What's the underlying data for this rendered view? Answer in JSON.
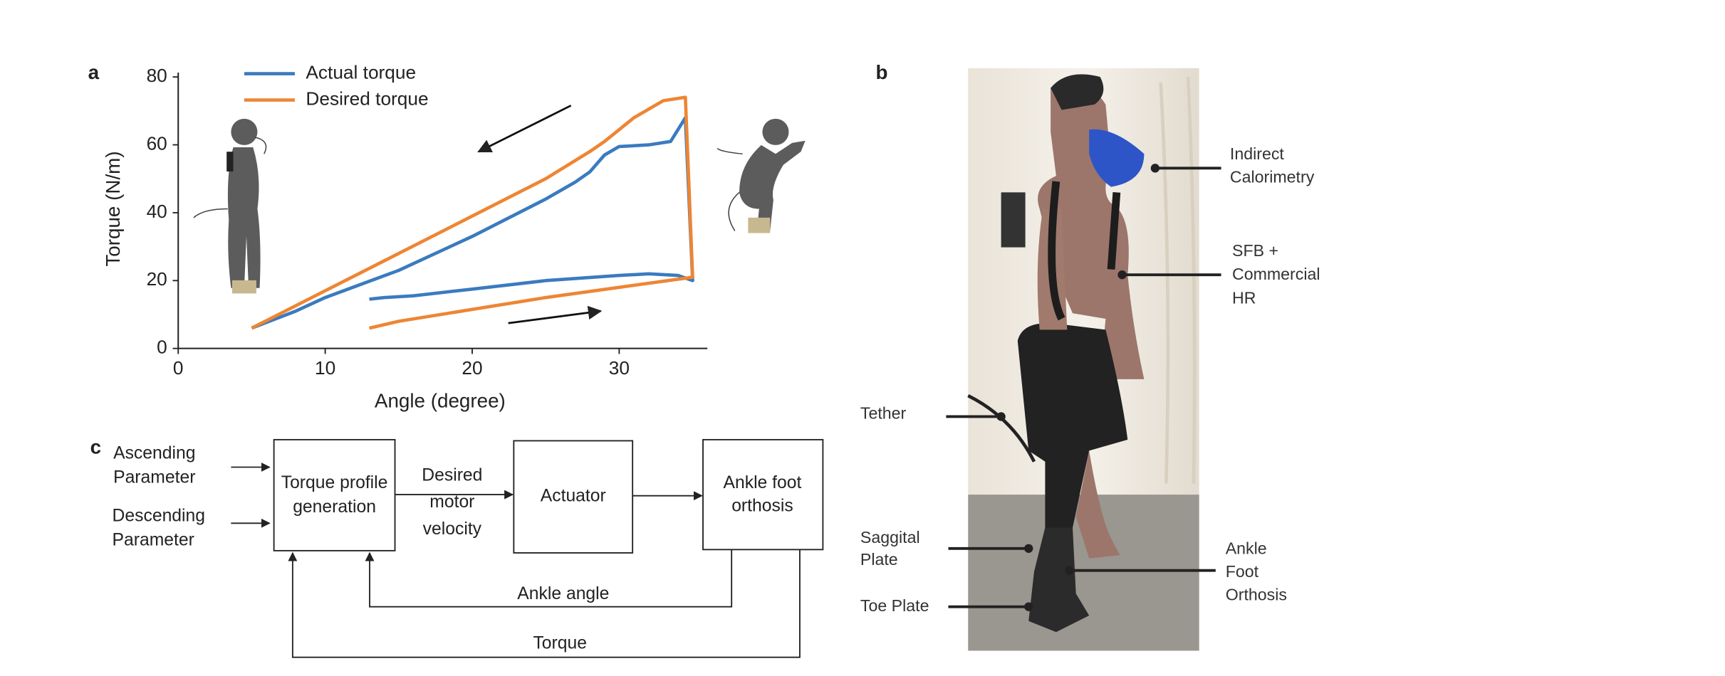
{
  "chart_data": {
    "type": "line",
    "xlabel": "Angle (degree)",
    "ylabel": "Torque (N/m)",
    "xlim": [
      0,
      36
    ],
    "ylim": [
      0,
      80
    ],
    "xticks": [
      0,
      10,
      20,
      30
    ],
    "yticks": [
      0,
      20,
      40,
      60,
      80
    ],
    "legend": "upper left",
    "series": [
      {
        "name": "Actual torque",
        "color": "#3a7bbf",
        "x": [
          5,
          8,
          10,
          15,
          20,
          25,
          27,
          28,
          29,
          30,
          32,
          33.5,
          34.5,
          35,
          34,
          32,
          30,
          25,
          20,
          16,
          14,
          13
        ],
        "values": [
          6,
          11,
          15,
          23,
          33,
          44,
          49,
          52,
          57,
          59.5,
          60,
          61,
          68,
          20,
          21.5,
          22,
          21.5,
          20,
          17.5,
          15.5,
          15,
          14.5
        ]
      },
      {
        "name": "Desired torque",
        "color": "#ee8533",
        "x": [
          5,
          10,
          15,
          20,
          25,
          28,
          29,
          31,
          33,
          34.5,
          35,
          30,
          25,
          20,
          15,
          13
        ],
        "values": [
          6,
          17,
          28,
          39,
          50,
          58,
          61,
          68,
          73,
          74,
          21,
          18,
          15,
          11.5,
          8,
          6
        ]
      }
    ]
  },
  "panel_labels": {
    "a": "a",
    "b": "b",
    "c": "c"
  },
  "photo": {
    "labels": [
      {
        "lines": [
          "Indirect",
          "Calorimetry"
        ]
      },
      {
        "lines": [
          "SFB +",
          "Commercial",
          "HR"
        ]
      },
      {
        "lines": [
          "Tether"
        ]
      },
      {
        "lines": [
          "Saggital",
          "Plate"
        ]
      },
      {
        "lines": [
          "Toe Plate"
        ]
      },
      {
        "lines": [
          "Ankle",
          "Foot",
          "Orthosis"
        ]
      }
    ]
  },
  "diagram": {
    "inputs": [
      [
        "Ascending",
        "Parameter"
      ],
      [
        "Descending",
        "Parameter"
      ]
    ],
    "boxes": [
      [
        "Torque profile",
        "generation"
      ],
      [
        "Actuator"
      ],
      [
        "Ankle foot",
        "orthosis"
      ]
    ],
    "edge_labels": {
      "velocity": [
        "Desired",
        "motor",
        "velocity"
      ],
      "angle": "Ankle angle",
      "torque": "Torque"
    }
  }
}
